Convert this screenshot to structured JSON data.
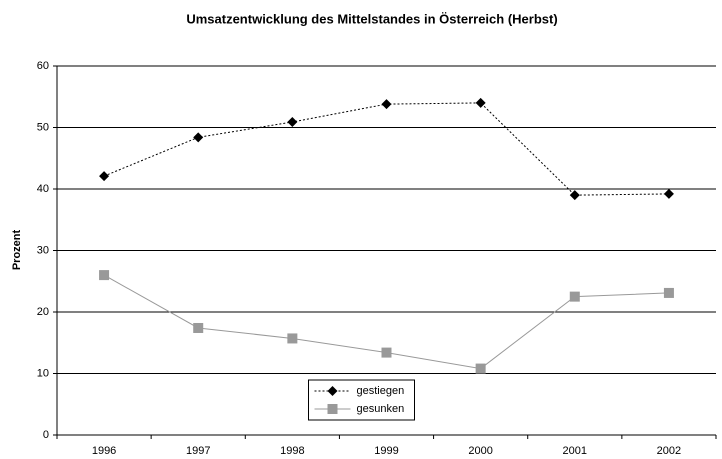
{
  "chart_data": {
    "type": "line",
    "title": "Umsatzentwicklung des Mittelstandes in Österreich (Herbst)",
    "ylabel": "Prozent",
    "categories": [
      "1996",
      "1997",
      "1998",
      "1999",
      "2000",
      "2001",
      "2002"
    ],
    "series": [
      {
        "name": "gestiegen",
        "color": "#000000",
        "linestyle": "dotted",
        "marker": "diamond",
        "values": [
          42.1,
          48.4,
          50.9,
          53.8,
          54.0,
          39.0,
          39.2
        ]
      },
      {
        "name": "gesunken",
        "color": "#999999",
        "linestyle": "solid",
        "marker": "square",
        "values": [
          26.0,
          17.4,
          15.7,
          13.4,
          10.8,
          22.5,
          23.1
        ]
      }
    ],
    "ylim": [
      0,
      60
    ],
    "yticks": [
      0,
      10,
      20,
      30,
      40,
      50,
      60
    ],
    "grid": true,
    "legend": "lower center"
  }
}
